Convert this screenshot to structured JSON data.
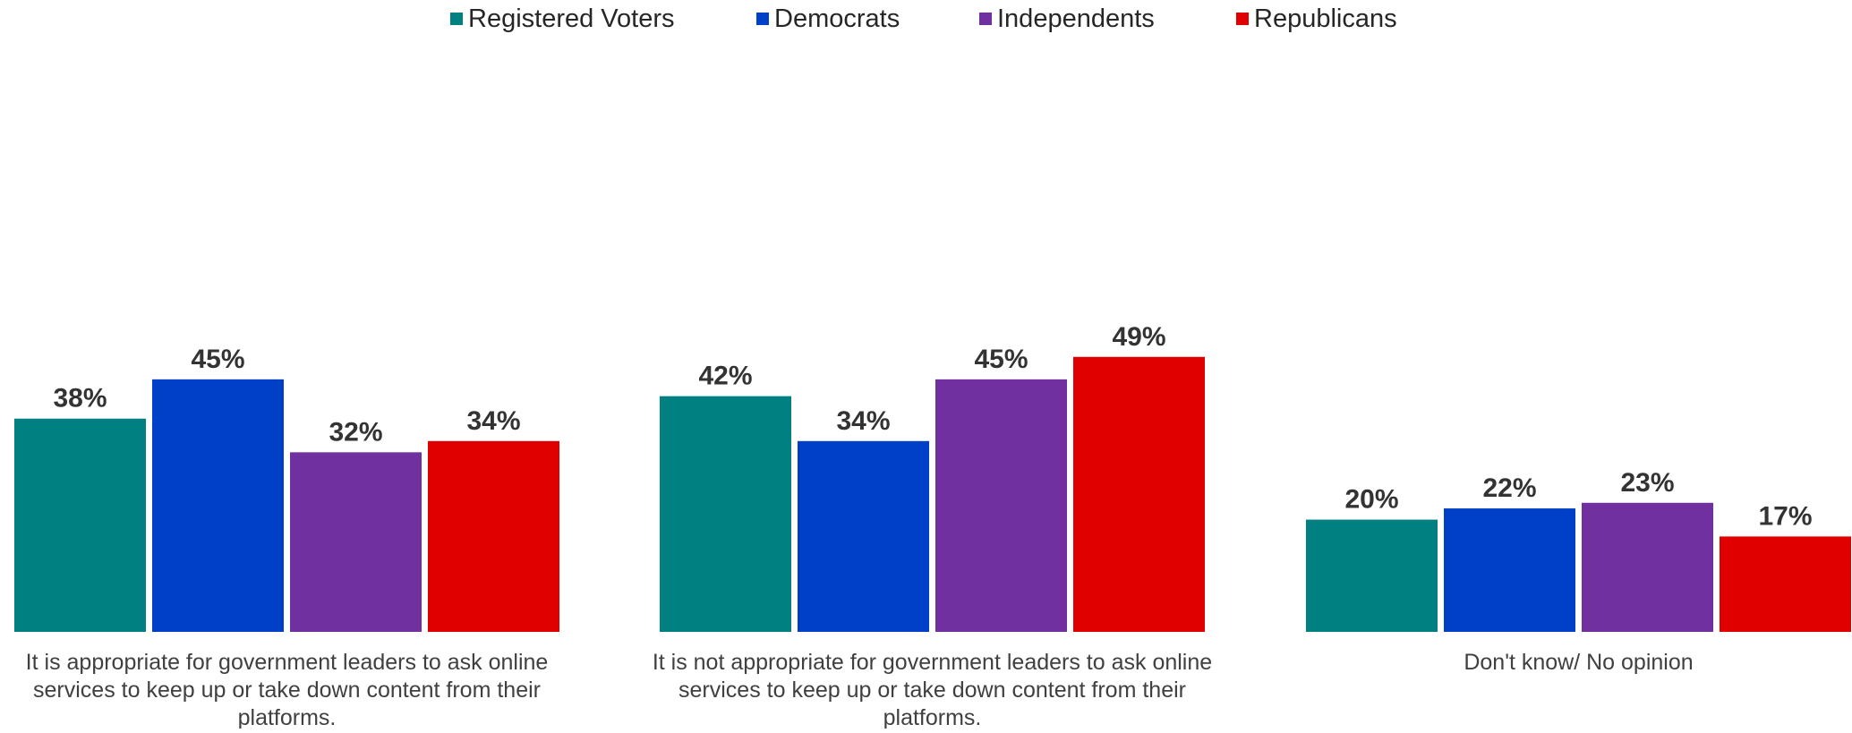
{
  "chart_data": {
    "type": "bar",
    "categories": [
      "It is appropriate for government leaders to ask online services to keep up or take down content from their platforms.",
      "It is not appropriate for government leaders to ask online services to keep up or take down content from their platforms.",
      "Don't know/ No opinion"
    ],
    "category_lines": [
      [
        "It is appropriate for government leaders to ask online",
        "services to keep up or take down content from their",
        "platforms."
      ],
      [
        "It is not appropriate for government leaders to ask online",
        "services to keep up or take down content from their",
        "platforms."
      ],
      [
        "Don't know/ No opinion"
      ]
    ],
    "series": [
      {
        "name": "Registered Voters",
        "color": "#008080",
        "values": [
          38,
          42,
          20
        ]
      },
      {
        "name": "Democrats",
        "color": "#0040C8",
        "values": [
          45,
          34,
          22
        ]
      },
      {
        "name": "Independents",
        "color": "#7030A0",
        "values": [
          32,
          45,
          23
        ]
      },
      {
        "name": "Republicans",
        "color": "#E00000",
        "values": [
          34,
          49,
          17
        ]
      }
    ],
    "value_suffix": "%",
    "ylim": [
      0,
      100
    ],
    "legend_position": "top",
    "grid": false,
    "title": "",
    "xlabel": "",
    "ylabel": ""
  }
}
